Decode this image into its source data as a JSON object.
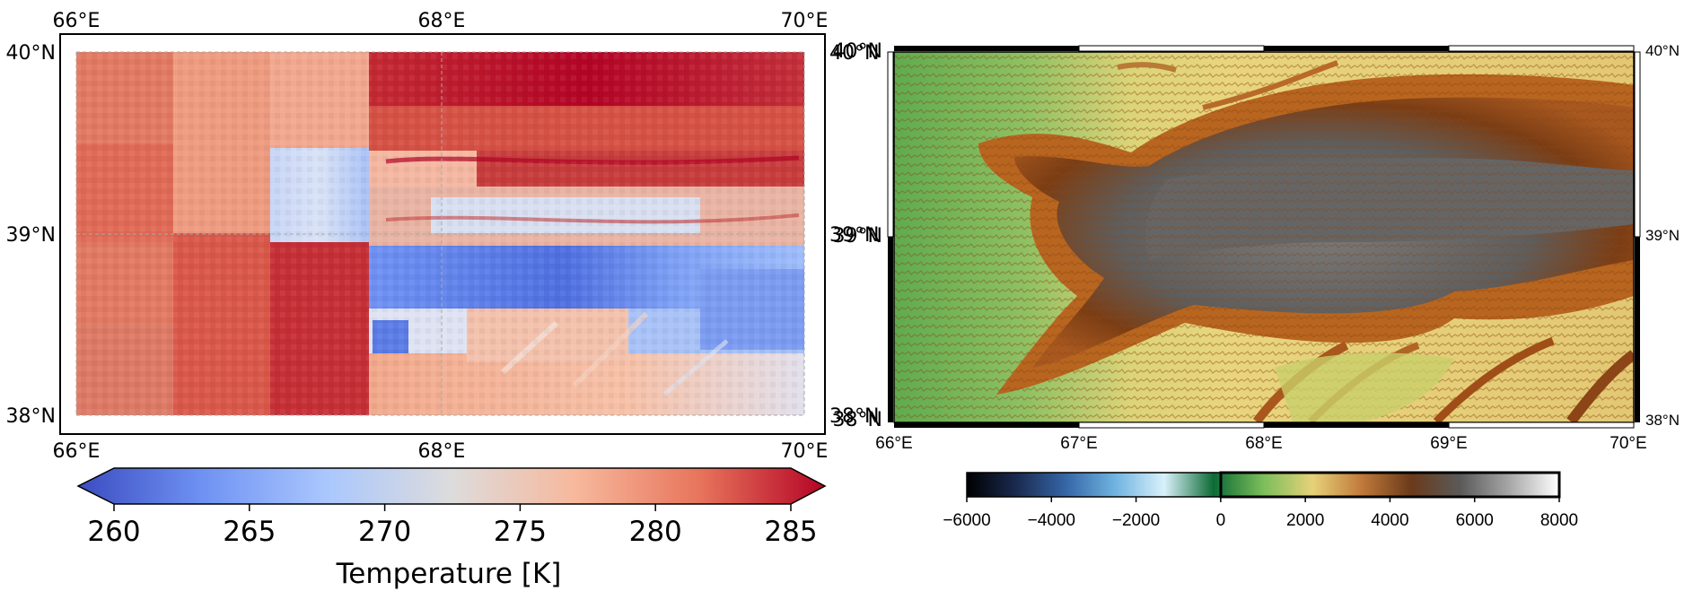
{
  "left_map": {
    "lon_ticks": [
      "66°E",
      "68°E",
      "70°E"
    ],
    "lat_ticks": [
      "40°N",
      "39°N",
      "38°N"
    ],
    "colorbar": {
      "ticks": [
        "260",
        "265",
        "270",
        "275",
        "280",
        "285"
      ],
      "label": "Temperature [K]",
      "range": [
        260,
        285
      ],
      "colors": [
        "#3b4cc0",
        "#6f92f3",
        "#aac7fd",
        "#dddcdc",
        "#f7b89c",
        "#e7745b",
        "#b40426"
      ]
    }
  },
  "right_map": {
    "lon_ticks": [
      "66°E",
      "67°E",
      "68°E",
      "69°E",
      "70°E"
    ],
    "lat_ticks": [
      "40°N",
      "39°N",
      "38°N"
    ],
    "colorbar": {
      "ticks": [
        "−6000",
        "−4000",
        "−2000",
        "0",
        "2000",
        "4000",
        "6000",
        "8000"
      ],
      "range": [
        -6000,
        8000
      ],
      "colors": [
        "#000000",
        "#1a2a4f",
        "#3566a6",
        "#6fb3e0",
        "#d9f1fa",
        "#0c6b35",
        "#7bbd5a",
        "#e6d27a",
        "#c0793a",
        "#6a3a1a",
        "#5a5a5a",
        "#a8a8a8",
        "#ffffff"
      ]
    },
    "elevation_colors": [
      "#6fb256",
      "#a6c86c",
      "#e8d67c",
      "#d9b566",
      "#b0621f",
      "#7a3b12",
      "#5a5a5a",
      "#7d7d7d"
    ]
  }
}
